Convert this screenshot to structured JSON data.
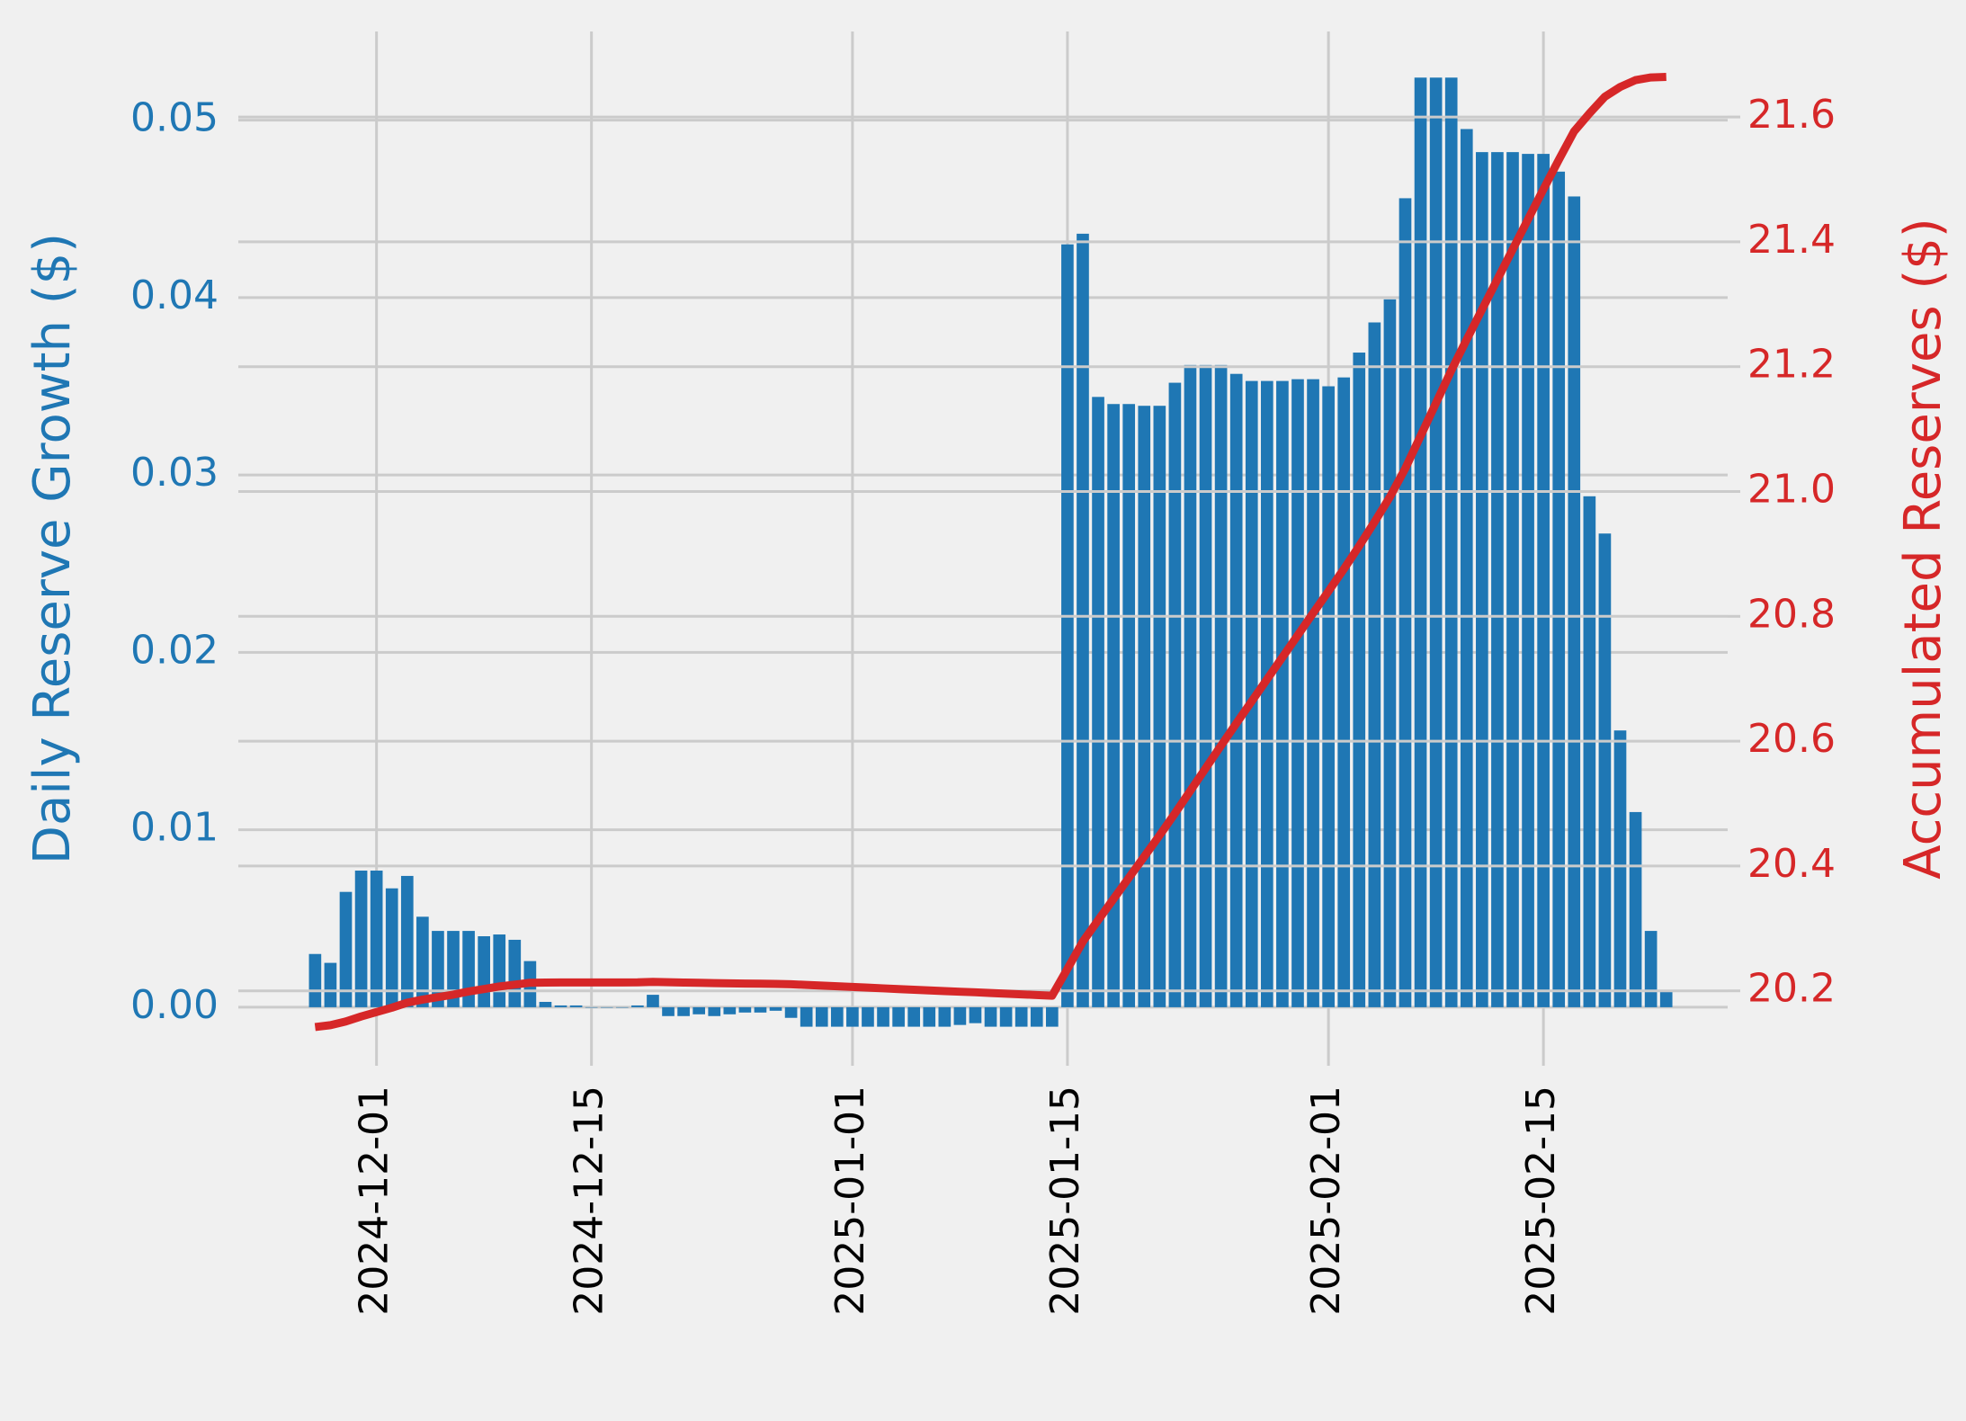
{
  "chart_data": {
    "type": "bar",
    "ylabel": "Daily Reserve Growth ($)",
    "y2label": "Accumulated Reserves ($)",
    "x": [
      "2024-11-27",
      "2024-11-28",
      "2024-11-29",
      "2024-11-30",
      "2024-12-01",
      "2024-12-02",
      "2024-12-03",
      "2024-12-04",
      "2024-12-05",
      "2024-12-06",
      "2024-12-07",
      "2024-12-08",
      "2024-12-09",
      "2024-12-10",
      "2024-12-11",
      "2024-12-12",
      "2024-12-13",
      "2024-12-14",
      "2024-12-15",
      "2024-12-16",
      "2024-12-17",
      "2024-12-18",
      "2024-12-19",
      "2024-12-20",
      "2024-12-21",
      "2024-12-22",
      "2024-12-23",
      "2024-12-24",
      "2024-12-25",
      "2024-12-26",
      "2024-12-27",
      "2024-12-28",
      "2024-12-29",
      "2024-12-30",
      "2024-12-31",
      "2025-01-01",
      "2025-01-02",
      "2025-01-03",
      "2025-01-04",
      "2025-01-05",
      "2025-01-06",
      "2025-01-07",
      "2025-01-08",
      "2025-01-09",
      "2025-01-10",
      "2025-01-11",
      "2025-01-12",
      "2025-01-13",
      "2025-01-14",
      "2025-01-15",
      "2025-01-16",
      "2025-01-17",
      "2025-01-18",
      "2025-01-19",
      "2025-01-20",
      "2025-01-21",
      "2025-01-22",
      "2025-01-23",
      "2025-01-24",
      "2025-01-25",
      "2025-01-26",
      "2025-01-27",
      "2025-01-28",
      "2025-01-29",
      "2025-01-30",
      "2025-01-31",
      "2025-02-01",
      "2025-02-02",
      "2025-02-03",
      "2025-02-04",
      "2025-02-05",
      "2025-02-06",
      "2025-02-07",
      "2025-02-08",
      "2025-02-09",
      "2025-02-10",
      "2025-02-11",
      "2025-02-12",
      "2025-02-13",
      "2025-02-14",
      "2025-02-15",
      "2025-02-16",
      "2025-02-17",
      "2025-02-18",
      "2025-02-19",
      "2025-02-20",
      "2025-02-21",
      "2025-02-22",
      "2025-02-23"
    ],
    "series": [
      {
        "color": "#1f77b4",
        "values": [
          0.003,
          0.0025,
          0.0065,
          0.0077,
          0.0077,
          0.0067,
          0.0074,
          0.0051,
          0.0043,
          0.0043,
          0.0043,
          0.004,
          0.0041,
          0.0038,
          0.0026,
          0.0003,
          0.0001,
          0.0001,
          0,
          0,
          0,
          0.0001,
          0.0007,
          -0.0005,
          -0.0005,
          -0.0004,
          -0.0005,
          -0.0004,
          -0.0003,
          -0.0003,
          -0.0002,
          -0.0006,
          -0.0011,
          -0.0011,
          -0.0011,
          -0.0011,
          -0.0011,
          -0.0011,
          -0.0011,
          -0.0011,
          -0.0011,
          -0.0011,
          -0.001,
          -0.0009,
          -0.0011,
          -0.0011,
          -0.0011,
          -0.0011,
          -0.0011,
          0.043,
          0.0436,
          0.0344,
          0.034,
          0.034,
          0.0339,
          0.0339,
          0.0352,
          0.0362,
          0.0362,
          0.0362,
          0.0357,
          0.0353,
          0.0353,
          0.0353,
          0.0354,
          0.0354,
          0.035,
          0.0355,
          0.0369,
          0.0386,
          0.0399,
          0.0456,
          0.0524,
          0.0524,
          0.0524,
          0.0495,
          0.0482,
          0.0482,
          0.0482,
          0.0481,
          0.0481,
          0.0471,
          0.0457,
          0.0288,
          0.0267,
          0.0156,
          0.011,
          0.0043,
          0.0009
        ]
      },
      {
        "type": "line",
        "axis": "y2",
        "color": "#d62728",
        "values": [
          20.142,
          20.145,
          20.151,
          20.159,
          20.166,
          20.173,
          20.181,
          20.186,
          20.19,
          20.194,
          20.199,
          20.203,
          20.207,
          20.21,
          20.213,
          20.2133,
          20.2134,
          20.2135,
          20.2135,
          20.2135,
          20.2135,
          20.2136,
          20.2143,
          20.2138,
          20.2133,
          20.2129,
          20.2124,
          20.212,
          20.2117,
          20.2114,
          20.2112,
          20.2106,
          20.2095,
          20.2084,
          20.2073,
          20.2062,
          20.2051,
          20.204,
          20.2029,
          20.2018,
          20.2007,
          20.1996,
          20.1986,
          20.1977,
          20.1966,
          20.1955,
          20.1944,
          20.1933,
          20.1922,
          20.2352,
          20.2788,
          20.3132,
          20.3472,
          20.3812,
          20.4151,
          20.449,
          20.4842,
          20.5204,
          20.5566,
          20.5928,
          20.6285,
          20.6638,
          20.6991,
          20.7344,
          20.7698,
          20.8052,
          20.8402,
          20.8757,
          20.9126,
          20.9512,
          20.9911,
          21.0367,
          21.0891,
          21.1415,
          21.1939,
          21.2434,
          21.2916,
          21.3398,
          21.388,
          21.4361,
          21.4842,
          21.5313,
          21.577,
          21.6058,
          21.6325,
          21.6481,
          21.6591,
          21.6634,
          21.6643
        ]
      }
    ],
    "xlim": [
      "2024-11-22",
      "2025-02-27"
    ],
    "xticks": [
      "2024-12-01",
      "2024-12-15",
      "2025-01-01",
      "2025-01-15",
      "2025-02-01",
      "2025-02-15"
    ],
    "ylim": [
      -0.0033,
      0.055
    ],
    "yticks": [
      {
        "value": 0,
        "label": "0.00"
      },
      {
        "value": 0.01,
        "label": "0.01"
      },
      {
        "value": 0.02,
        "label": "0.02"
      },
      {
        "value": 0.03,
        "label": "0.03"
      },
      {
        "value": 0.04,
        "label": "0.04"
      },
      {
        "value": 0.05,
        "label": "0.05"
      }
    ],
    "y2lim": [
      20.08,
      21.737
    ],
    "y2ticks": [
      {
        "value": 20.2,
        "label": "20.2"
      },
      {
        "value": 20.4,
        "label": "20.4"
      },
      {
        "value": 20.6,
        "label": "20.6"
      },
      {
        "value": 20.8,
        "label": "20.8"
      },
      {
        "value": 21,
        "label": "21.0"
      },
      {
        "value": 21.2,
        "label": "21.2"
      },
      {
        "value": 21.4,
        "label": "21.4"
      },
      {
        "value": 21.6,
        "label": "21.6"
      }
    ],
    "grid": true
  }
}
